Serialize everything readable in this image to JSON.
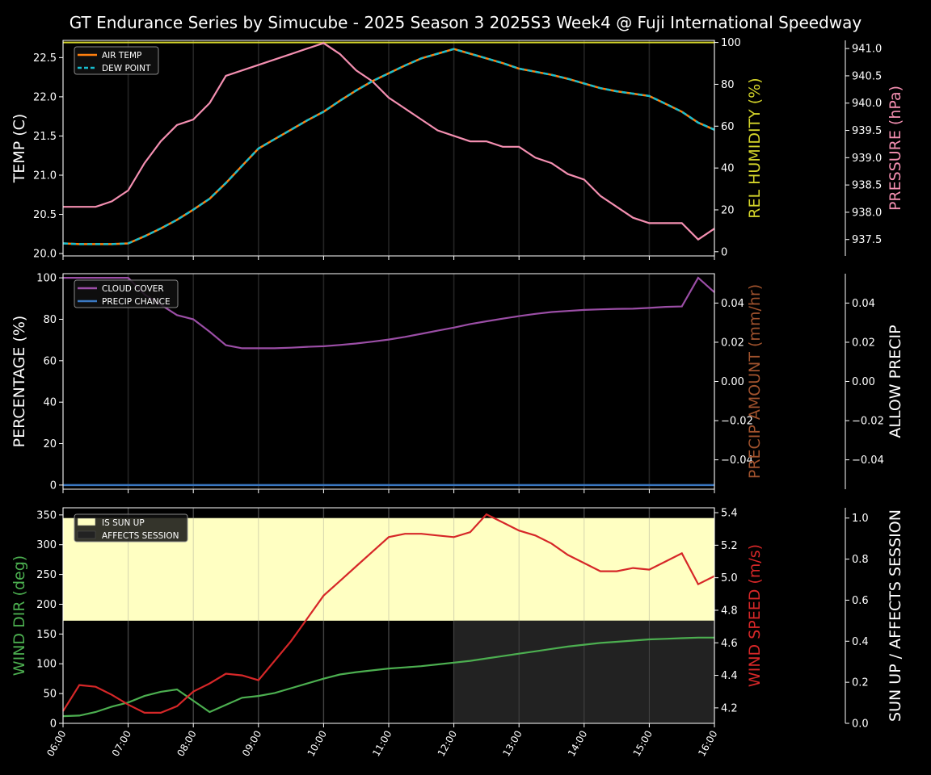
{
  "title": "GT Endurance Series by Simucube - 2025 Season 3 2025S3 Week4 @ Fuji International Speedway",
  "colors": {
    "background": "#000000",
    "foreground": "#ffffff",
    "air_temp": "#ff7f0e",
    "dew_point": "#17becf",
    "humidity": "#d4d42a",
    "pressure": "#f48fb1",
    "cloud": "#9b4ea6",
    "precip_chance": "#3a78c2",
    "precip_amount": "#a0522d",
    "wind_dir": "#4caf50",
    "wind_speed": "#d62728",
    "sun_up": "#ffffc2",
    "affects_session": "#222222"
  },
  "x_ticks": [
    "06:00",
    "07:00",
    "08:00",
    "09:00",
    "10:00",
    "11:00",
    "12:00",
    "13:00",
    "14:00",
    "15:00",
    "16:00"
  ],
  "chart_data": [
    {
      "type": "line",
      "xlim": [
        6,
        16
      ],
      "ylabel": "TEMP (C)",
      "ylim": [
        19.97,
        22.72
      ],
      "yticks": [
        "20.0",
        "20.5",
        "21.0",
        "21.5",
        "22.0",
        "22.5"
      ],
      "y2label": "REL HUMIDITY (%)",
      "y2lim": [
        -2,
        101
      ],
      "y2ticks": [
        "0",
        "20",
        "40",
        "60",
        "80",
        "100"
      ],
      "y3label": "PRESSURE (hPa)",
      "y3lim": [
        937.2,
        941.15
      ],
      "y3ticks": [
        "937.5",
        "938.0",
        "938.5",
        "939.0",
        "939.5",
        "940.0",
        "940.5",
        "941.0"
      ],
      "legend": [
        "AIR TEMP",
        "DEW POINT"
      ],
      "legend_position": "top-left",
      "x": [
        6,
        6.25,
        6.5,
        6.75,
        7,
        7.25,
        7.5,
        7.75,
        8,
        8.25,
        8.5,
        8.75,
        9,
        9.25,
        9.5,
        9.75,
        10,
        10.25,
        10.5,
        10.75,
        11,
        11.25,
        11.5,
        11.75,
        12,
        12.25,
        12.5,
        12.75,
        13,
        13.25,
        13.5,
        13.75,
        14,
        14.25,
        14.5,
        14.75,
        15,
        15.25,
        15.5,
        15.75,
        16
      ],
      "series": [
        {
          "name": "AIR TEMP",
          "axis": "left",
          "values": [
            20.13,
            20.12,
            20.12,
            20.12,
            20.13,
            20.22,
            20.32,
            20.43,
            20.56,
            20.7,
            20.9,
            21.12,
            21.34,
            21.46,
            21.58,
            21.7,
            21.81,
            21.95,
            22.08,
            22.2,
            22.3,
            22.4,
            22.49,
            22.55,
            22.61,
            22.55,
            22.49,
            22.43,
            22.36,
            22.32,
            22.28,
            22.23,
            22.17,
            22.11,
            22.07,
            22.04,
            22.01,
            21.91,
            21.81,
            21.67,
            21.58
          ]
        },
        {
          "name": "DEW POINT",
          "axis": "left",
          "values": [
            20.13,
            20.12,
            20.12,
            20.12,
            20.13,
            20.22,
            20.32,
            20.43,
            20.56,
            20.7,
            20.9,
            21.12,
            21.34,
            21.46,
            21.58,
            21.7,
            21.81,
            21.95,
            22.08,
            22.2,
            22.3,
            22.4,
            22.49,
            22.55,
            22.61,
            22.55,
            22.49,
            22.43,
            22.36,
            22.32,
            22.28,
            22.23,
            22.17,
            22.11,
            22.07,
            22.04,
            22.01,
            21.91,
            21.81,
            21.67,
            21.58
          ]
        },
        {
          "name": "REL HUMIDITY",
          "axis": "right1",
          "values": [
            100,
            100,
            100,
            100,
            100,
            100,
            100,
            100,
            100,
            100,
            100,
            100,
            100,
            100,
            100,
            100,
            100,
            100,
            100,
            100,
            100,
            100,
            100,
            100,
            100,
            100,
            100,
            100,
            100,
            100,
            100,
            100,
            100,
            100,
            100,
            100,
            100,
            100,
            100,
            100,
            100
          ]
        },
        {
          "name": "PRESSURE",
          "axis": "right2",
          "values": [
            938.1,
            938.1,
            938.1,
            938.2,
            938.4,
            938.9,
            939.3,
            939.6,
            939.7,
            940.0,
            940.5,
            940.6,
            940.7,
            940.8,
            940.9,
            941.0,
            941.1,
            940.9,
            940.6,
            940.4,
            940.1,
            939.9,
            939.7,
            939.5,
            939.4,
            939.3,
            939.3,
            939.2,
            939.2,
            939.0,
            938.9,
            938.7,
            938.6,
            938.3,
            938.1,
            937.9,
            937.8,
            937.8,
            937.8,
            937.5,
            937.7
          ]
        }
      ]
    },
    {
      "type": "line",
      "xlim": [
        6,
        16
      ],
      "ylabel": "PERCENTAGE (%)",
      "ylim": [
        -2,
        102
      ],
      "yticks": [
        "0",
        "20",
        "40",
        "60",
        "80",
        "100"
      ],
      "y2label": "PRECIP AMOUNT (mm/hr)",
      "y2lim": [
        -0.055,
        0.055
      ],
      "y2ticks": [
        "−0.04",
        "−0.02",
        "0.00",
        "0.02",
        "0.04"
      ],
      "y3label": "ALLOW PRECIP",
      "y3lim": [
        -0.055,
        0.055
      ],
      "y3ticks": [
        "−0.04",
        "−0.02",
        "0.00",
        "0.02",
        "0.04"
      ],
      "legend": [
        "CLOUD COVER",
        "PRECIP CHANCE"
      ],
      "legend_position": "top-left",
      "x": [
        6,
        6.25,
        6.5,
        6.75,
        7,
        7.25,
        7.5,
        7.75,
        8,
        8.25,
        8.5,
        8.75,
        9,
        9.25,
        9.5,
        9.75,
        10,
        10.25,
        10.5,
        10.75,
        11,
        11.25,
        11.5,
        11.75,
        12,
        12.25,
        12.5,
        12.75,
        13,
        13.25,
        13.5,
        13.75,
        14,
        14.25,
        14.5,
        14.75,
        15,
        15.25,
        15.5,
        15.75,
        16
      ],
      "series": [
        {
          "name": "CLOUD COVER",
          "values": [
            100,
            100,
            100,
            100,
            100,
            92,
            87,
            82,
            80,
            74,
            67.5,
            66,
            66,
            66,
            66.3,
            66.7,
            67,
            67.6,
            68.3,
            69.2,
            70.2,
            71.5,
            73,
            74.5,
            76,
            77.7,
            79,
            80.3,
            81.5,
            82.6,
            83.5,
            84,
            84.5,
            84.8,
            85,
            85.1,
            85.5,
            86,
            86.2,
            100,
            93
          ]
        },
        {
          "name": "PRECIP CHANCE",
          "values": [
            0,
            0,
            0,
            0,
            0,
            0,
            0,
            0,
            0,
            0,
            0,
            0,
            0,
            0,
            0,
            0,
            0,
            0,
            0,
            0,
            0,
            0,
            0,
            0,
            0,
            0,
            0,
            0,
            0,
            0,
            0,
            0,
            0,
            0,
            0,
            0,
            0,
            0,
            0,
            0,
            0
          ]
        }
      ]
    },
    {
      "type": "line",
      "xlim": [
        6,
        16
      ],
      "ylabel": "WIND DIR (deg)",
      "ylim": [
        0,
        362
      ],
      "yticks": [
        "0",
        "50",
        "100",
        "150",
        "200",
        "250",
        "300",
        "350"
      ],
      "y2label": "WIND SPEED (m/s)",
      "y2lim": [
        4.105,
        5.43
      ],
      "y2ticks": [
        "4.2",
        "4.4",
        "4.6",
        "4.8",
        "5.0",
        "5.2",
        "5.4"
      ],
      "y3label": "SUN UP / AFFECTS SESSION",
      "y3lim": [
        0,
        1.05
      ],
      "y3ticks": [
        "0.0",
        "0.2",
        "0.4",
        "0.6",
        "0.8",
        "1.0"
      ],
      "legend": [
        "IS SUN UP",
        "AFFECTS SESSION"
      ],
      "legend_position": "top-left",
      "sun_up_band": [
        0.5,
        1.0
      ],
      "affects_session_from": 12,
      "x": [
        6,
        6.25,
        6.5,
        6.75,
        7,
        7.25,
        7.5,
        7.75,
        8,
        8.25,
        8.5,
        8.75,
        9,
        9.25,
        9.5,
        9.75,
        10,
        10.25,
        10.5,
        10.75,
        11,
        11.25,
        11.5,
        11.75,
        12,
        12.25,
        12.5,
        12.75,
        13,
        13.25,
        13.5,
        13.75,
        14,
        14.25,
        14.5,
        14.75,
        15,
        15.25,
        15.5,
        15.75,
        16
      ],
      "series": [
        {
          "name": "WIND DIR",
          "axis": "left",
          "values": [
            12,
            13,
            19,
            28,
            35,
            46,
            53,
            57,
            38,
            19,
            31,
            43,
            46,
            51,
            59,
            67,
            75,
            82,
            86,
            89,
            92,
            94,
            96,
            99,
            102,
            105,
            109,
            113,
            117,
            121,
            125,
            129,
            132,
            135,
            137,
            139,
            141,
            142,
            143,
            144,
            144
          ]
        },
        {
          "name": "WIND SPEED",
          "axis": "right1",
          "values": [
            4.18,
            4.34,
            4.33,
            4.28,
            4.22,
            4.17,
            4.17,
            4.21,
            4.3,
            4.35,
            4.41,
            4.4,
            4.37,
            4.49,
            4.61,
            4.75,
            4.89,
            4.98,
            5.07,
            5.16,
            5.25,
            5.27,
            5.27,
            5.26,
            5.25,
            5.28,
            5.39,
            5.34,
            5.29,
            5.26,
            5.21,
            5.14,
            5.09,
            5.04,
            5.04,
            5.06,
            5.05,
            5.1,
            5.15,
            4.96,
            5.01
          ]
        }
      ]
    }
  ]
}
